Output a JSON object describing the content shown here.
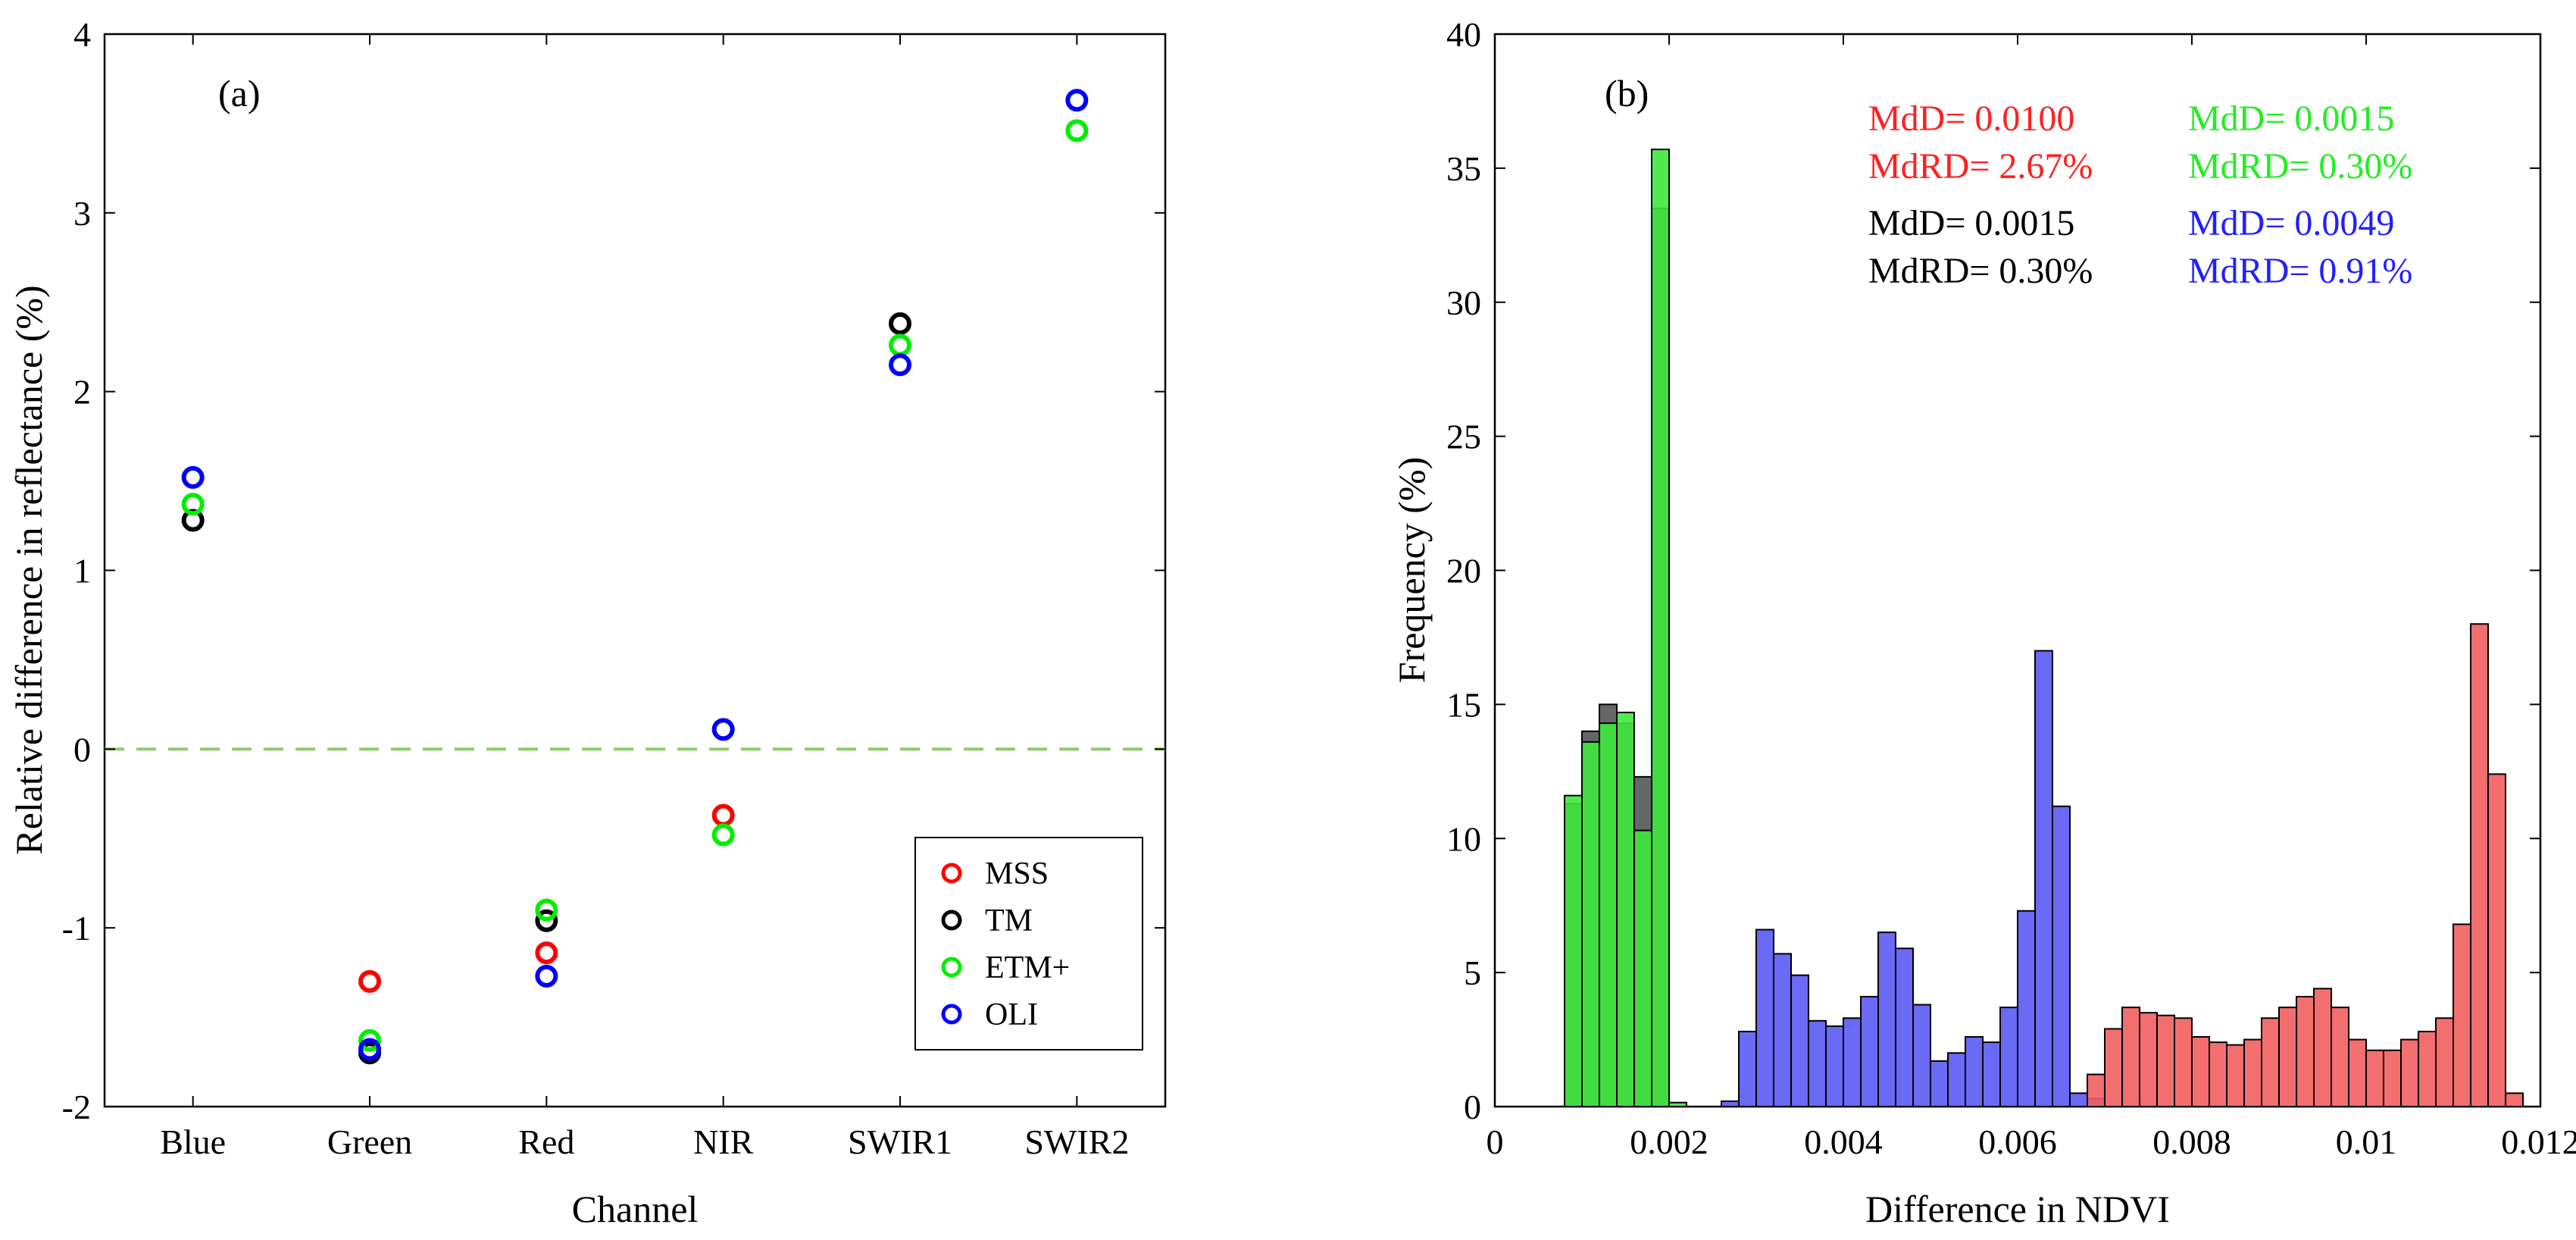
{
  "chart_data": [
    {
      "type": "scatter",
      "panel_label": "(a)",
      "xlabel": "Channel",
      "ylabel": "Relative difference in reflectance (%)",
      "categories": [
        "Blue",
        "Green",
        "Red",
        "NIR",
        "SWIR1",
        "SWIR2"
      ],
      "ylim": [
        -2,
        4
      ],
      "yticks": [
        -2,
        -1,
        0,
        1,
        2,
        3,
        4
      ],
      "reference_line": {
        "y": 0,
        "style": "dashed",
        "color": "#8fca6a"
      },
      "legend_position": "bottom-right",
      "series": [
        {
          "name": "MSS",
          "color": "#ff0000",
          "values": [
            null,
            -1.3,
            -1.14,
            -0.37,
            null,
            null
          ]
        },
        {
          "name": "TM",
          "color": "#000000",
          "values": [
            1.28,
            -1.7,
            -0.96,
            null,
            2.38,
            null
          ]
        },
        {
          "name": "ETM+",
          "color": "#00ee00",
          "values": [
            1.37,
            -1.63,
            -0.9,
            -0.48,
            2.26,
            3.46
          ]
        },
        {
          "name": "OLI",
          "color": "#0000ff",
          "values": [
            1.52,
            -1.68,
            -1.27,
            0.11,
            2.15,
            3.63
          ]
        }
      ]
    },
    {
      "type": "bar",
      "subtype": "histogram",
      "panel_label": "(b)",
      "xlabel": "Difference in NDVI",
      "ylabel": "Frequency (%)",
      "xlim": [
        0,
        0.012
      ],
      "ylim": [
        0,
        40
      ],
      "xticks": [
        0,
        0.002,
        0.004,
        0.006,
        0.008,
        0.01,
        0.012
      ],
      "xtick_labels": [
        "0",
        "0.002",
        "0.004",
        "0.006",
        "0.008",
        "0.01",
        "0.012"
      ],
      "yticks": [
        0,
        5,
        10,
        15,
        20,
        25,
        30,
        35,
        40
      ],
      "bin_width": 0.0002,
      "series": [
        {
          "name": "TM",
          "color": "#555555",
          "bin_starts": [
            0.0008,
            0.001,
            0.0012,
            0.0014,
            0.0016,
            0.0018
          ],
          "values": [
            11.3,
            14.0,
            15.0,
            14.3,
            12.3,
            33.5
          ]
        },
        {
          "name": "ETM+",
          "color": "#3ee83e",
          "bin_starts": [
            0.0008,
            0.001,
            0.0012,
            0.0014,
            0.0016,
            0.0018,
            0.002
          ],
          "values": [
            11.6,
            13.6,
            14.3,
            14.7,
            10.3,
            35.7,
            0.15
          ]
        },
        {
          "name": "OLI",
          "color": "#5a5af5",
          "bin_starts": [
            0.0026,
            0.0028,
            0.003,
            0.0032,
            0.0034,
            0.0036,
            0.0038,
            0.004,
            0.0042,
            0.0044,
            0.0046,
            0.0048,
            0.005,
            0.0052,
            0.0054,
            0.0056,
            0.0058,
            0.006,
            0.0062,
            0.0064,
            0.0066,
            0.0068
          ],
          "values": [
            0.2,
            2.8,
            6.6,
            5.7,
            4.9,
            3.2,
            3.0,
            3.3,
            4.1,
            6.5,
            5.9,
            3.8,
            1.7,
            2.0,
            2.6,
            2.4,
            3.7,
            7.3,
            17.0,
            11.2,
            0.5,
            0.3
          ]
        },
        {
          "name": "MSS",
          "color": "#f25f5f",
          "bin_starts": [
            0.0068,
            0.007,
            0.0072,
            0.0074,
            0.0076,
            0.0078,
            0.008,
            0.0082,
            0.0084,
            0.0086,
            0.0088,
            0.009,
            0.0092,
            0.0094,
            0.0096,
            0.0098,
            0.01,
            0.0102,
            0.0104,
            0.0106,
            0.0108,
            0.011,
            0.0112,
            0.0114,
            0.0116
          ],
          "values": [
            1.2,
            2.9,
            3.7,
            3.5,
            3.4,
            3.3,
            2.6,
            2.4,
            2.3,
            2.5,
            3.3,
            3.7,
            4.1,
            4.4,
            3.7,
            2.5,
            2.1,
            2.1,
            2.5,
            2.8,
            3.3,
            6.8,
            18.0,
            12.4,
            0.5
          ]
        }
      ],
      "annotations": [
        {
          "text": "MdD= 0.0100",
          "color": "#ff2020"
        },
        {
          "text": "MdRD= 2.67%",
          "color": "#ff2020"
        },
        {
          "text": "MdD= 0.0015",
          "color": "#22ee22"
        },
        {
          "text": "MdRD= 0.30%",
          "color": "#22ee22"
        },
        {
          "text": "MdD= 0.0015",
          "color": "#000000"
        },
        {
          "text": "MdRD= 0.30%",
          "color": "#000000"
        },
        {
          "text": "MdD= 0.0049",
          "color": "#2020ff"
        },
        {
          "text": "MdRD= 0.91%",
          "color": "#2020ff"
        }
      ]
    }
  ]
}
